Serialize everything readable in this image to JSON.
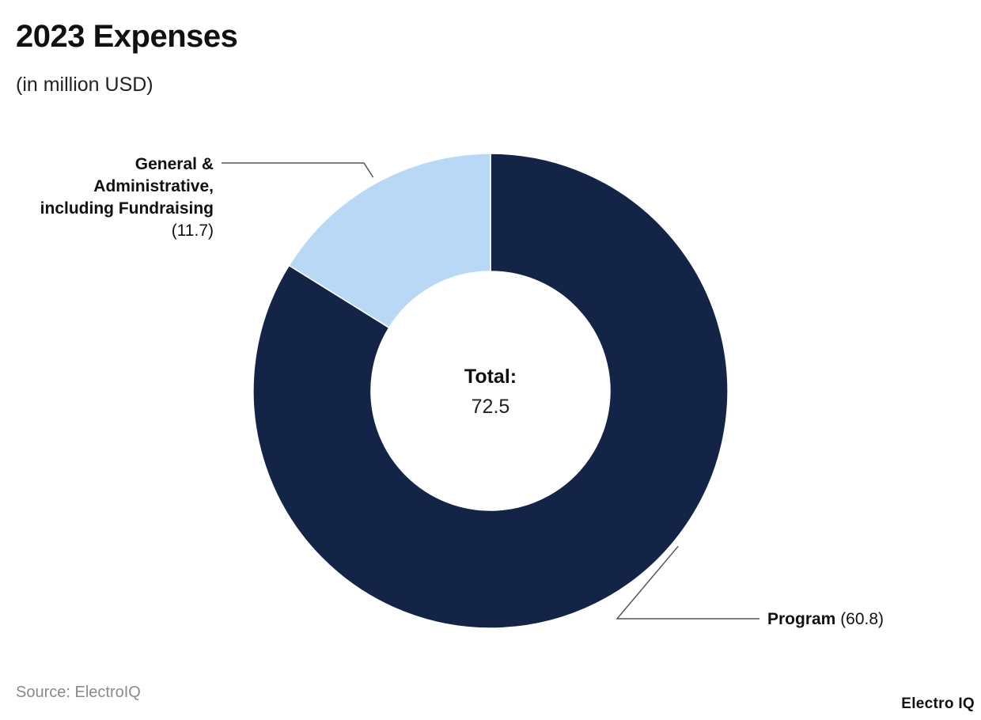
{
  "header": {
    "title": "2023 Expenses",
    "subtitle": "(in million USD)"
  },
  "chart_data": {
    "type": "pie",
    "donut": true,
    "title": "2023 Expenses",
    "subtitle": "(in million USD)",
    "categories": [
      "Program",
      "General & Administrative, including Fundraising"
    ],
    "values": [
      60.8,
      11.7
    ],
    "colors": [
      "#142447",
      "#b8d8f5"
    ],
    "center_label": "Total:",
    "center_value": "72.5",
    "labels": [
      {
        "name_lines": [
          "Program"
        ],
        "value_text": "(60.8)"
      },
      {
        "name_lines": [
          "General &",
          "Administrative,",
          "including Fundraising"
        ],
        "value_text": "(11.7)"
      }
    ]
  },
  "footer": {
    "source": "Source: ElectroIQ",
    "brand": "Electro IQ"
  }
}
